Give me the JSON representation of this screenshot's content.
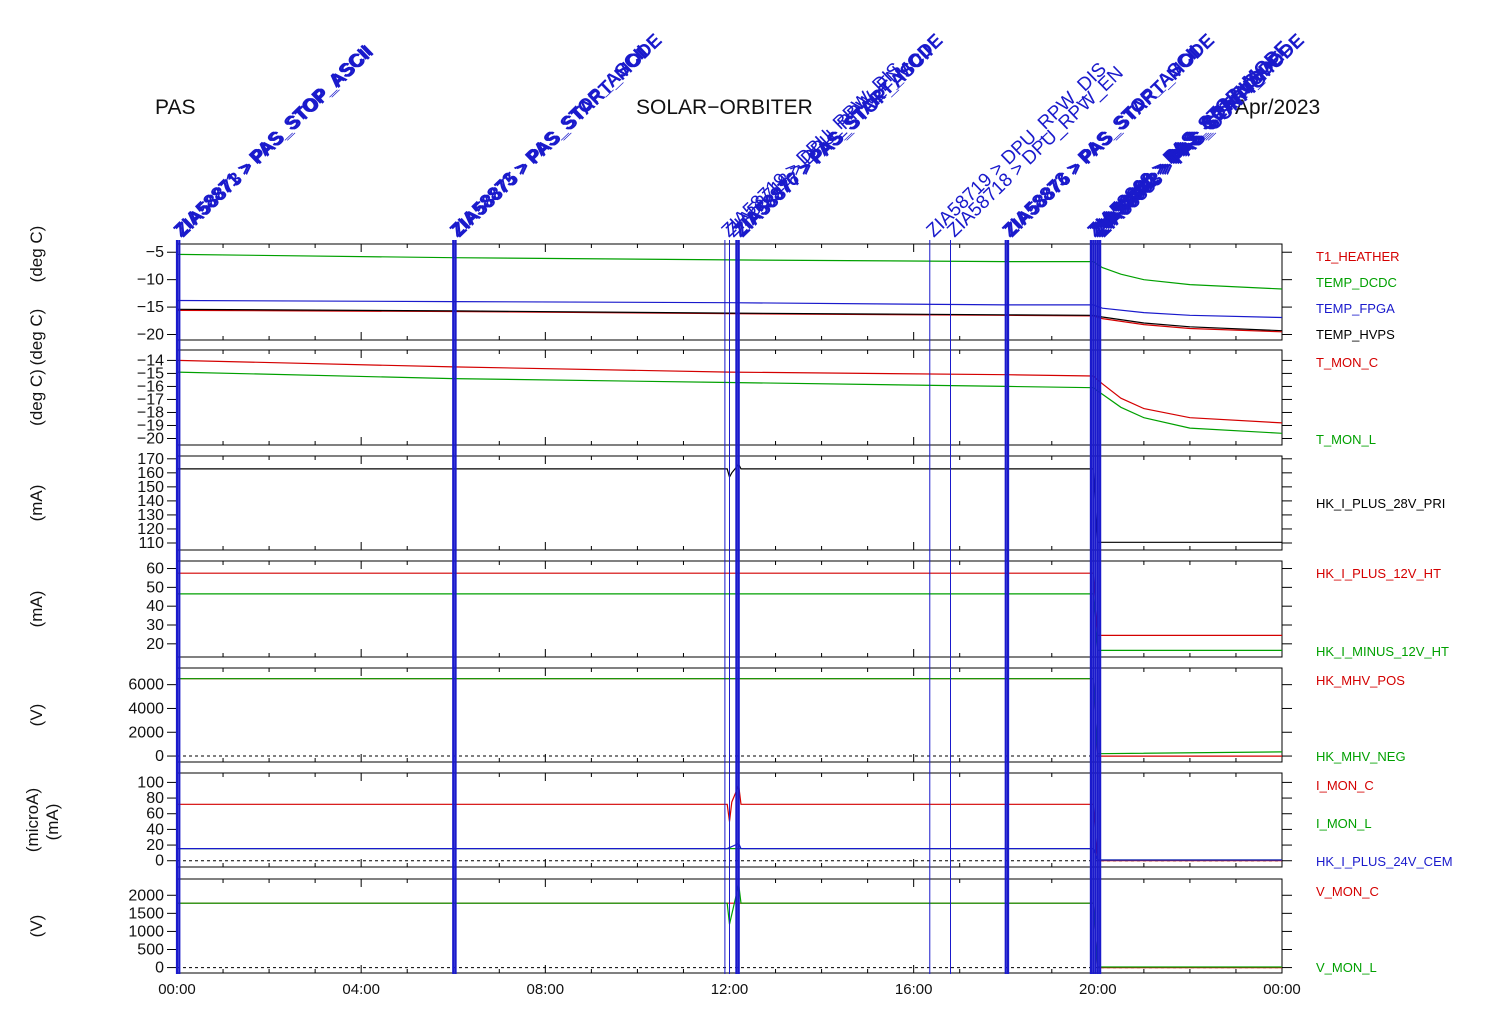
{
  "header": {
    "left": "PAS",
    "center": "SOLAR−ORBITER",
    "right": "Apr/2023"
  },
  "colors": {
    "red": "#d40000",
    "green": "#00a000",
    "blue": "#1a1acc",
    "black": "#000000",
    "event": "#1a1acc"
  },
  "x_ticks": [
    "00:00",
    "04:00",
    "08:00",
    "12:00",
    "16:00",
    "20:00",
    "00:00"
  ],
  "events": [
    {
      "h": 0.0,
      "label": "ZIA58871 > PAS_STOP_ASCII",
      "thick": true
    },
    {
      "h": 0.05,
      "label": "ZIA58873 > PAS_STOP_ASCII",
      "thick": true
    },
    {
      "h": 6.0,
      "label": "ZIA58873 > PAS_STOP_ASCII",
      "thick": true
    },
    {
      "h": 6.05,
      "label": "ZIA58875 > PAS_START_MODE",
      "thick": true
    },
    {
      "h": 11.9,
      "label": "ZIA58719 > DPU_RPW_DIS",
      "thick": false
    },
    {
      "h": 12.0,
      "label": "ZIA58718 > DPU_RPW_EN",
      "thick": false
    },
    {
      "h": 12.15,
      "label": "ZIA58876 > PAS_START_MODE",
      "thick": true
    },
    {
      "h": 12.2,
      "label": "ZIA58877 > PAS_STOP_ASCII",
      "thick": true
    },
    {
      "h": 16.35,
      "label": "ZIA58719 > DPU_RPW_DIS",
      "thick": false
    },
    {
      "h": 16.8,
      "label": "ZIA58718 > DPU_RPW_EN",
      "thick": false
    },
    {
      "h": 18.0,
      "label": "ZIA58873 > PAS_STOP_ASCII",
      "thick": true
    },
    {
      "h": 18.05,
      "label": "ZIA58876 > PAS_START_MODE",
      "thick": true
    },
    {
      "h": 19.85,
      "label": "ZIA58869 > PAS_STOP_MODE",
      "thick": true
    },
    {
      "h": 19.9,
      "label": "ZIA58880 > PAS_CONFIG",
      "thick": true
    },
    {
      "h": 19.95,
      "label": "ZIA58881 > PAS_SET_MODE",
      "thick": true
    },
    {
      "h": 20.0,
      "label": "ZIA58882 > PAS_START_MODE",
      "thick": true
    },
    {
      "h": 20.05,
      "label": "ZIA58883 > PAS_CONFIG",
      "thick": true
    }
  ],
  "chart_data": [
    {
      "type": "line",
      "ylabel": "(deg C)",
      "ylabel2": "(deg C)",
      "ylim": [
        -21,
        -3.5
      ],
      "yticks": [
        -5,
        -10,
        -15,
        -20
      ],
      "series": [
        {
          "name": "T1_HEATHER",
          "color": "red",
          "x": [
            0,
            6,
            12,
            18,
            19.9,
            20.1,
            21,
            22,
            24
          ],
          "y": [
            -15.6,
            -15.8,
            -16.2,
            -16.5,
            -16.6,
            -17.1,
            -18.2,
            -18.9,
            -19.5
          ]
        },
        {
          "name": "TEMP_DCDC",
          "color": "green",
          "x": [
            0,
            6,
            12,
            18,
            19.9,
            20.1,
            20.5,
            21,
            22,
            24
          ],
          "y": [
            -5.4,
            -6.0,
            -6.4,
            -6.7,
            -6.7,
            -7.8,
            -9.0,
            -10.0,
            -10.9,
            -11.7
          ]
        },
        {
          "name": "TEMP_FPGA",
          "color": "blue",
          "x": [
            0,
            6,
            12,
            18,
            19.9,
            20.1,
            21,
            22,
            24
          ],
          "y": [
            -13.8,
            -14.0,
            -14.2,
            -14.6,
            -14.6,
            -15.2,
            -16.0,
            -16.5,
            -16.9
          ]
        },
        {
          "name": "TEMP_HVPS",
          "color": "black",
          "x": [
            0,
            6,
            12,
            18,
            19.9,
            20.1,
            21,
            22,
            24
          ],
          "y": [
            -15.4,
            -15.7,
            -16.1,
            -16.4,
            -16.5,
            -16.8,
            -17.9,
            -18.6,
            -19.3
          ]
        }
      ]
    },
    {
      "type": "line",
      "ylabel": "(deg C)",
      "ylim": [
        -20.5,
        -13.2
      ],
      "yticks": [
        -14,
        -15,
        -16,
        -17,
        -18,
        -19,
        -20
      ],
      "series": [
        {
          "name": "T_MON_C",
          "color": "red",
          "x": [
            0,
            6,
            12,
            18,
            19.9,
            20.1,
            20.5,
            21,
            22,
            24
          ],
          "y": [
            -14.0,
            -14.5,
            -14.9,
            -15.1,
            -15.2,
            -15.8,
            -16.9,
            -17.7,
            -18.4,
            -18.8
          ]
        },
        {
          "name": "T_MON_L",
          "color": "green",
          "x": [
            0,
            6,
            12,
            18,
            19.9,
            20.1,
            20.5,
            21,
            22,
            24
          ],
          "y": [
            -14.9,
            -15.4,
            -15.7,
            -16.0,
            -16.1,
            -16.6,
            -17.6,
            -18.4,
            -19.2,
            -19.6
          ]
        }
      ]
    },
    {
      "type": "line",
      "ylabel": "(mA)",
      "ylim": [
        105,
        172
      ],
      "yticks": [
        170,
        160,
        150,
        140,
        130,
        120,
        110
      ],
      "series": [
        {
          "name": "HK_I_PLUS_28V_PRI",
          "color": "black",
          "x": [
            0,
            11.95,
            12.0,
            12.05,
            12.2,
            12.25,
            19.9,
            20.0,
            24
          ],
          "y": [
            162.8,
            162.8,
            157,
            160,
            166,
            162.8,
            162.8,
            110.5,
            110.5
          ]
        }
      ]
    },
    {
      "type": "line",
      "ylabel": "(mA)",
      "ylim": [
        13,
        64
      ],
      "yticks": [
        60,
        50,
        40,
        30,
        20
      ],
      "series": [
        {
          "name": "HK_I_PLUS_12V_HT",
          "color": "red",
          "x": [
            0,
            19.9,
            20.0,
            24
          ],
          "y": [
            57.5,
            57.5,
            24.5,
            24.5
          ]
        },
        {
          "name": "HK_I_MINUS_12V_HT",
          "color": "green",
          "x": [
            0,
            19.9,
            20.0,
            24
          ],
          "y": [
            46.5,
            46.5,
            16.5,
            16.5
          ]
        }
      ]
    },
    {
      "type": "line",
      "ylabel": "(V)",
      "ylim": [
        -500,
        7400
      ],
      "yticks": [
        6000,
        4000,
        2000,
        0
      ],
      "dashed_zero": true,
      "series": [
        {
          "name": "HK_MHV_POS",
          "color": "red",
          "x": [
            0,
            19.9,
            20.0,
            24
          ],
          "y": [
            6500,
            6500,
            0,
            0
          ]
        },
        {
          "name": "HK_MHV_NEG",
          "color": "green",
          "x": [
            0,
            19.9,
            20.0,
            24
          ],
          "y": [
            6500,
            6500,
            200,
            350
          ]
        }
      ]
    },
    {
      "type": "line",
      "ylabel": "(microA)",
      "ylabel2": "(mA)",
      "ylim": [
        -8,
        112
      ],
      "yticks": [
        100,
        80,
        60,
        40,
        20,
        0
      ],
      "dashed_zero": true,
      "series": [
        {
          "name": "I_MON_C",
          "color": "red",
          "x": [
            0,
            11.95,
            12.0,
            12.05,
            12.2,
            12.25,
            19.9,
            20.0,
            24
          ],
          "y": [
            72,
            72,
            50,
            75,
            96,
            72,
            72,
            0,
            0
          ]
        },
        {
          "name": "I_MON_L",
          "color": "green",
          "x": [
            0,
            19.9,
            20.0,
            24
          ],
          "y": [
            15.5,
            15.5,
            1,
            1
          ]
        },
        {
          "name": "HK_I_PLUS_24V_CEM",
          "color": "blue",
          "x": [
            0,
            11.95,
            12.2,
            12.25,
            19.9,
            20.0,
            24
          ],
          "y": [
            15.5,
            15.5,
            22,
            15.5,
            15.5,
            1,
            1
          ]
        }
      ]
    },
    {
      "type": "line",
      "ylabel": "(V)",
      "ylim": [
        -150,
        2450
      ],
      "yticks": [
        2000,
        1500,
        1000,
        500,
        0
      ],
      "dashed_zero": true,
      "series": [
        {
          "name": "V_MON_C",
          "color": "red",
          "x": [
            0,
            19.9,
            20.0,
            24
          ],
          "y": [
            1780,
            1780,
            0,
            0
          ]
        },
        {
          "name": "V_MON_L",
          "color": "green",
          "x": [
            0,
            11.95,
            12.0,
            12.2,
            12.25,
            19.9,
            20.0,
            24
          ],
          "y": [
            1780,
            1780,
            1200,
            2300,
            1780,
            1780,
            15,
            15
          ]
        }
      ]
    }
  ]
}
